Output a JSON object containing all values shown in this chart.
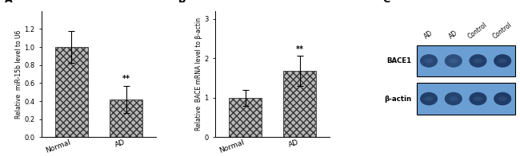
{
  "panel_A": {
    "label": "A",
    "categories": [
      "Normal",
      "AD"
    ],
    "values": [
      1.0,
      0.42
    ],
    "errors": [
      0.18,
      0.15
    ],
    "ylabel": "Relative  miR-15b level to U6",
    "ylim": [
      0,
      1.4
    ],
    "yticks": [
      0.0,
      0.2,
      0.4,
      0.6,
      0.8,
      1.0,
      1.2
    ],
    "sig_label": "**",
    "sig_bar_index": 1
  },
  "panel_B": {
    "label": "B",
    "categories": [
      "Normal",
      "AD"
    ],
    "values": [
      1.0,
      1.68
    ],
    "errors": [
      0.2,
      0.38
    ],
    "ylabel": "Relative  BACE mRNA level to β-actin",
    "ylim": [
      0,
      3.2
    ],
    "yticks": [
      0,
      1,
      2,
      3
    ],
    "sig_label": "**",
    "sig_bar_index": 1
  },
  "panel_C": {
    "label": "C",
    "lane_labels": [
      "AD",
      "AD",
      "Control",
      "Control"
    ],
    "row_labels": [
      "BACE1",
      "β-actin"
    ],
    "blot_bg": "#6b9fd4",
    "band_color": "#1a3560",
    "band_edge_color": "#4a6fa0"
  },
  "bar_color": "#b8b8b8",
  "bar_hatch": "xxxx",
  "bar_edgecolor": "#333333",
  "background_color": "#ffffff"
}
